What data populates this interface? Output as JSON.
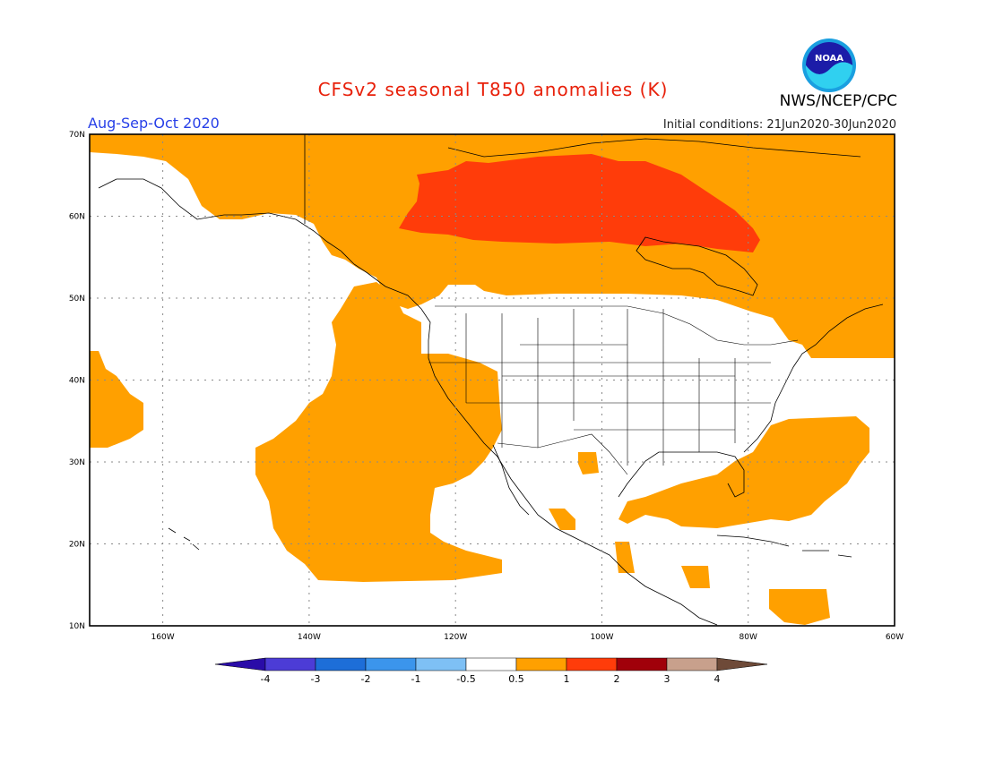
{
  "header": {
    "title": "CFSv2 seasonal T850 anomalies (K)",
    "period": "Aug-Sep-Oct 2020",
    "initial_conditions": "Initial conditions: 21Jun2020-30Jun2020",
    "credit": "NWS/NCEP/CPC",
    "logo_text": "NOAA"
  },
  "map": {
    "lat_labels": [
      "70N",
      "60N",
      "50N",
      "40N",
      "30N",
      "20N",
      "10N"
    ],
    "lon_labels": [
      "160W",
      "140W",
      "120W",
      "100W",
      "80W",
      "60W"
    ],
    "lat_range": [
      10,
      70
    ],
    "lon_range": [
      -170,
      -60
    ],
    "colors": {
      "anom_0_5_to_1": "#ffa000",
      "anom_1_to_2": "#ff3c0a",
      "land_outline": "#000000",
      "grid": "#8a8a8a"
    },
    "regions": [
      {
        "name": "Alaska / NE Pacific / northern Canada",
        "category": "0.5-1"
      },
      {
        "name": "Central Canada",
        "category": "1-2"
      },
      {
        "name": "Western US and NE Pacific",
        "category": "0.5-1"
      },
      {
        "name": "Central Pacific near Hawaii",
        "category": "0.5-1"
      },
      {
        "name": "Gulf of Mexico / Caribbean / W Atlantic",
        "category": "0.5-1"
      },
      {
        "name": "Eastern Canada / NW Atlantic",
        "category": "0.5-1"
      }
    ]
  },
  "legend": {
    "labels": [
      "-4",
      "-3",
      "-2",
      "-1",
      "-0.5",
      "0.5",
      "1",
      "2",
      "3",
      "4"
    ],
    "colors": [
      "#2a0ca8",
      "#4c3cd6",
      "#1d6ed8",
      "#3b95ec",
      "#7ec0f5",
      "#ffffff",
      "#ffa000",
      "#ff3c0a",
      "#a0000a",
      "#c8a08c",
      "#6e4a38"
    ]
  }
}
